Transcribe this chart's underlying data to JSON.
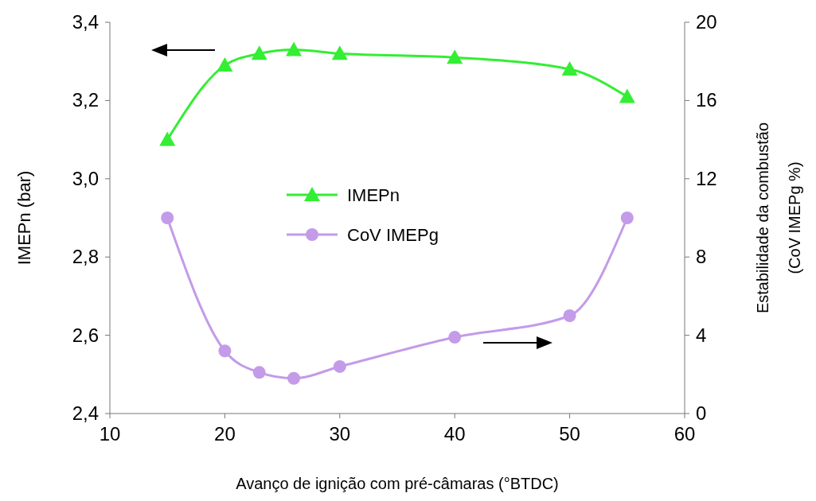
{
  "chart_data": {
    "type": "line",
    "xlabel": "Avanço de ignição com pré-câmaras  (°BTDC)",
    "ylabel": "IMEPn (bar)",
    "y2label": "Estabilidade da combustão\n(CoV IMEPg %)",
    "x": [
      15,
      20,
      23,
      26,
      30,
      40,
      50,
      55
    ],
    "series": [
      {
        "name": "IMEPn",
        "color": "#33ee33",
        "marker": "triangle",
        "values": [
          3.1,
          3.29,
          3.32,
          3.33,
          3.32,
          3.31,
          3.28,
          3.21
        ]
      },
      {
        "name": "CoV IMEPg",
        "color": "#c39be8",
        "marker": "circle",
        "axis": "y2",
        "values": [
          10.0,
          3.2,
          2.1,
          1.8,
          2.4,
          3.9,
          5.0,
          10.0
        ]
      }
    ],
    "xlim": [
      10,
      60
    ],
    "xticks": [
      10,
      20,
      30,
      40,
      50,
      60
    ],
    "ylim": [
      2.4,
      3.4
    ],
    "yticks": [
      {
        "value": 2.4,
        "label": "2,4"
      },
      {
        "value": 2.6,
        "label": "2,6"
      },
      {
        "value": 2.8,
        "label": "2,8"
      },
      {
        "value": 3.0,
        "label": "3,0"
      },
      {
        "value": 3.2,
        "label": "3,2"
      },
      {
        "value": 3.4,
        "label": "3,4"
      }
    ],
    "y2lim": [
      0,
      20
    ],
    "y2ticks": [
      0,
      4,
      8,
      12,
      16,
      20
    ],
    "legend": "center",
    "grid": false
  }
}
